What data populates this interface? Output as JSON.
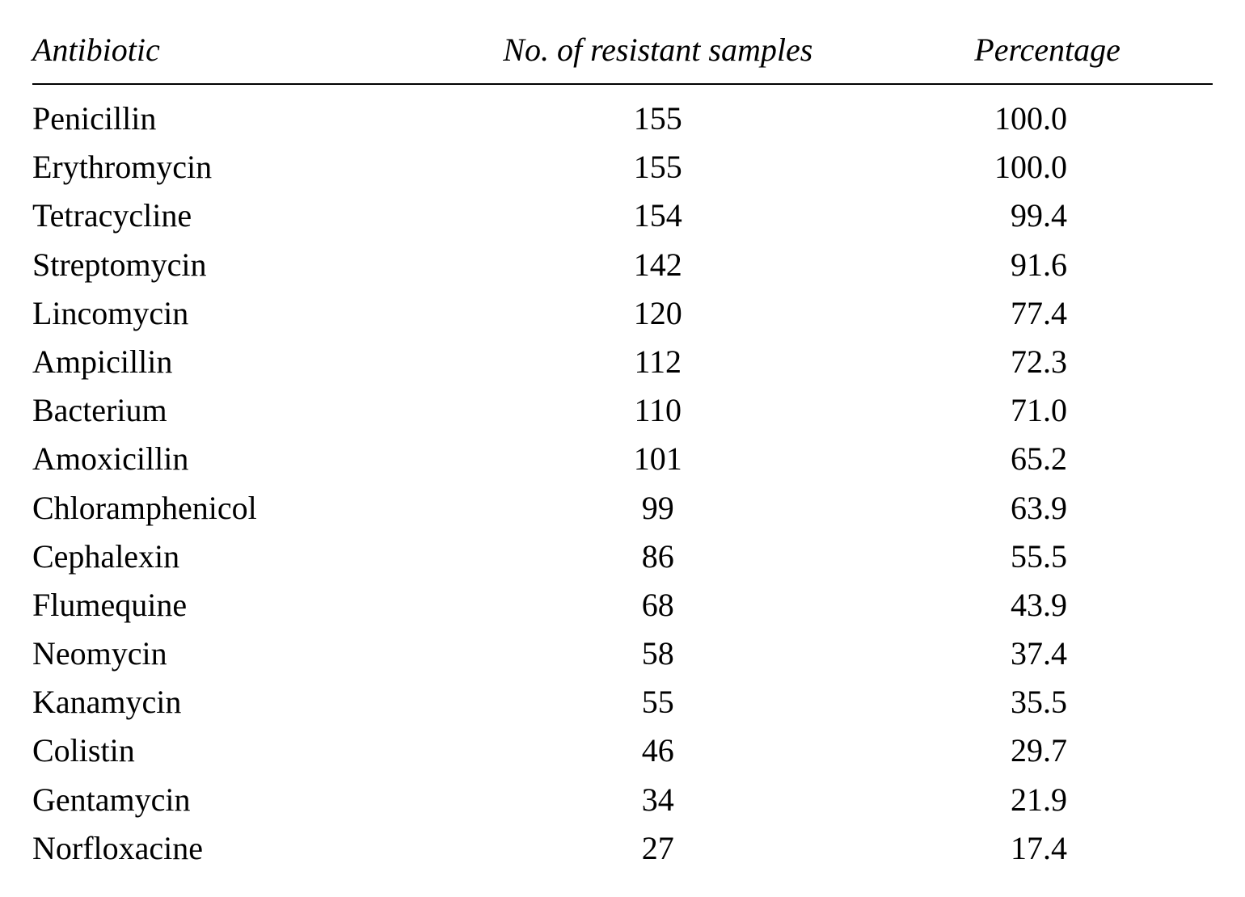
{
  "table": {
    "type": "table",
    "background_color": "#ffffff",
    "text_color": "#000000",
    "border_color": "#000000",
    "header_fontsize_pt": 30,
    "body_fontsize_pt": 30,
    "font_family": "Times New Roman",
    "header_font_style": "italic",
    "columns": [
      {
        "key": "antibiotic",
        "label": "Antibiotic",
        "align": "left",
        "width_pct": 34
      },
      {
        "key": "count",
        "label": "No. of resistant samples",
        "align": "center",
        "width_pct": 38
      },
      {
        "key": "percentage",
        "label": "Percentage",
        "align": "right",
        "width_pct": 28
      }
    ],
    "rows": [
      {
        "antibiotic": "Penicillin",
        "count": "155",
        "percentage": "100.0"
      },
      {
        "antibiotic": "Erythromycin",
        "count": "155",
        "percentage": "100.0"
      },
      {
        "antibiotic": "Tetracycline",
        "count": "154",
        "percentage": "99.4"
      },
      {
        "antibiotic": "Streptomycin",
        "count": "142",
        "percentage": "91.6"
      },
      {
        "antibiotic": "Lincomycin",
        "count": "120",
        "percentage": "77.4"
      },
      {
        "antibiotic": "Ampicillin",
        "count": "112",
        "percentage": "72.3"
      },
      {
        "antibiotic": "Bacterium",
        "count": "110",
        "percentage": "71.0"
      },
      {
        "antibiotic": "Amoxicillin",
        "count": "101",
        "percentage": "65.2"
      },
      {
        "antibiotic": "Chloramphenicol",
        "count": "99",
        "percentage": "63.9"
      },
      {
        "antibiotic": "Cephalexin",
        "count": "86",
        "percentage": "55.5"
      },
      {
        "antibiotic": "Flumequine",
        "count": "68",
        "percentage": "43.9"
      },
      {
        "antibiotic": "Neomycin",
        "count": "58",
        "percentage": "37.4"
      },
      {
        "antibiotic": "Kanamycin",
        "count": "55",
        "percentage": "35.5"
      },
      {
        "antibiotic": "Colistin",
        "count": "46",
        "percentage": "29.7"
      },
      {
        "antibiotic": "Gentamycin",
        "count": "34",
        "percentage": "21.9"
      },
      {
        "antibiotic": "Norfloxacine",
        "count": "27",
        "percentage": "17.4"
      }
    ]
  }
}
